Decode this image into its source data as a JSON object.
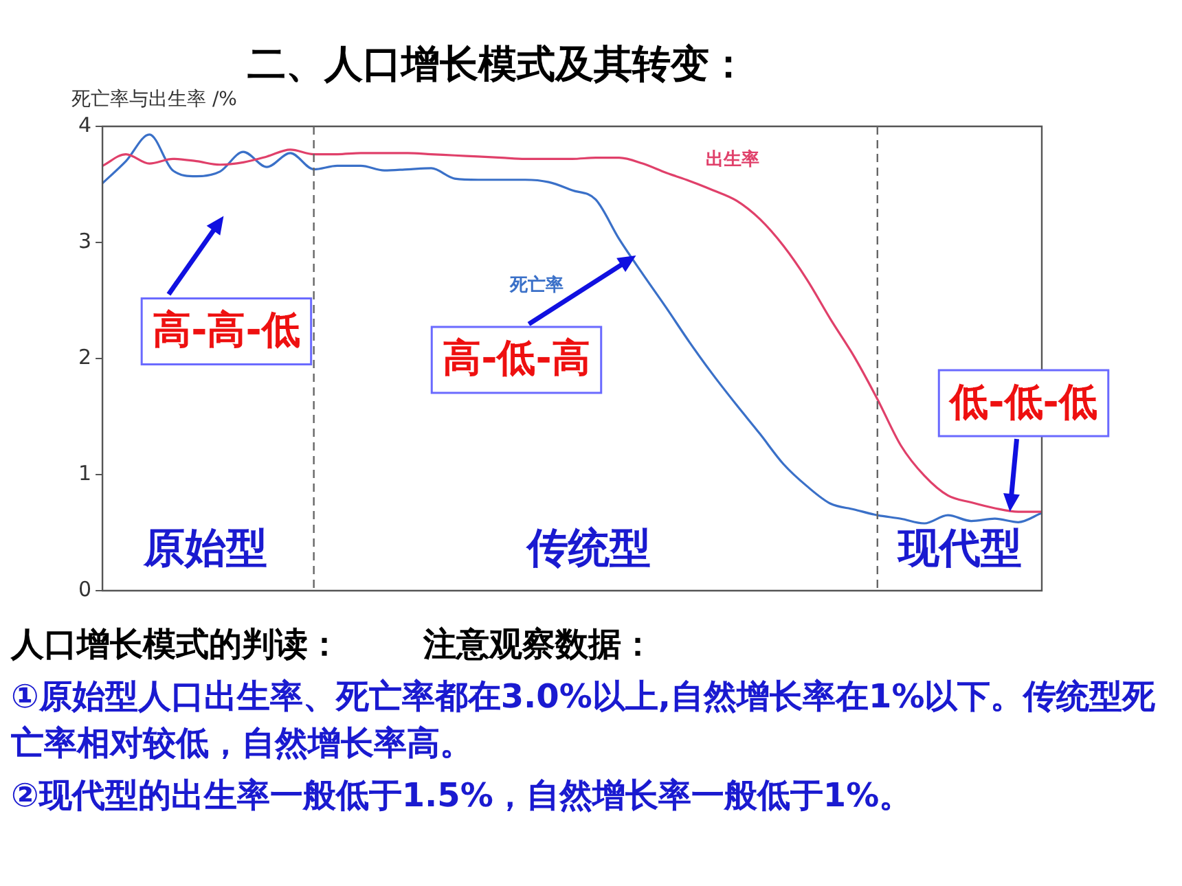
{
  "chart_data": {
    "type": "line",
    "title": "二、人口增长模式及其转变：",
    "ylabel": "死亡率与出生率 /%",
    "categories": [
      null,
      null,
      null,
      null,
      null,
      null,
      null,
      null,
      null,
      null,
      null,
      null,
      null,
      null,
      null,
      null,
      null,
      null,
      null,
      null,
      null,
      null,
      null,
      null,
      null,
      null,
      null,
      null,
      null,
      null,
      null,
      null,
      null,
      null,
      null,
      null,
      null,
      null,
      null,
      null,
      null
    ],
    "ylim": [
      0,
      4
    ],
    "yticks": [
      0,
      1,
      2,
      3,
      4
    ],
    "tick_labels": "y",
    "grid": false,
    "legend": false,
    "marker": "none",
    "line_style": "solid",
    "series": [
      {
        "name": "出生率",
        "color": "#e0406a",
        "values": [
          3.66,
          3.76,
          3.68,
          3.72,
          3.7,
          3.67,
          3.69,
          3.74,
          3.8,
          3.76,
          3.76,
          3.77,
          3.77,
          3.77,
          3.76,
          3.75,
          3.74,
          3.73,
          3.72,
          3.72,
          3.72,
          3.73,
          3.73,
          3.68,
          3.6,
          3.53,
          3.45,
          3.36,
          3.2,
          2.97,
          2.68,
          2.34,
          2.02,
          1.65,
          1.25,
          0.99,
          0.82,
          0.76,
          0.71,
          0.68,
          0.68
        ]
      },
      {
        "name": "死亡率",
        "color": "#3a70c8",
        "values": [
          3.51,
          3.7,
          3.93,
          3.62,
          3.57,
          3.61,
          3.78,
          3.65,
          3.77,
          3.63,
          3.66,
          3.66,
          3.62,
          3.63,
          3.64,
          3.55,
          3.54,
          3.54,
          3.54,
          3.52,
          3.45,
          3.37,
          3.03,
          2.73,
          2.44,
          2.14,
          1.86,
          1.6,
          1.35,
          1.09,
          0.9,
          0.75,
          0.7,
          0.65,
          0.62,
          0.58,
          0.65,
          0.6,
          0.62,
          0.59,
          0.67
        ]
      }
    ],
    "annotations": [
      "原始型",
      "传统型",
      "现代型",
      "高-高-低",
      "高-低-高",
      "低-低-低",
      "人口增长模式的判读：",
      "注意观察数据：",
      "①原始型人口出生率、死亡率都在3.0%以上,自然增长率在1%以下。传统型死亡率相对较低，自然增长率高。",
      "②现代型的出生率一般低于1.5%，自然增长率一般低于1%。"
    ]
  }
}
